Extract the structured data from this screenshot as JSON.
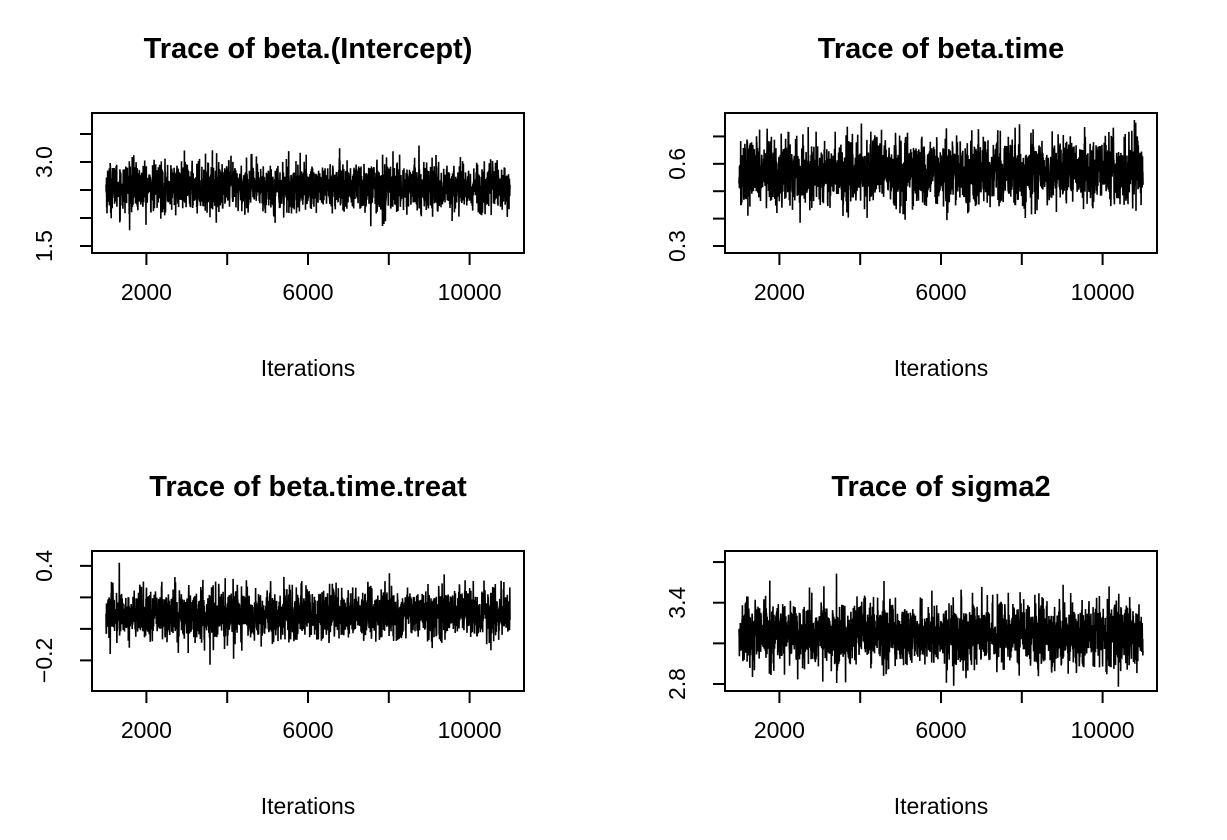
{
  "chart_data": [
    {
      "type": "line",
      "title": "Trace of beta.(Intercept)",
      "xlabel": "Iterations",
      "ylabel": "",
      "x_ticks": [
        2000,
        4000,
        6000,
        8000,
        10000
      ],
      "x_tick_labels": [
        "2000",
        "",
        "6000",
        "",
        "10000"
      ],
      "y_ticks": [
        1.5,
        2.0,
        2.5,
        3.0,
        3.5
      ],
      "y_tick_labels": [
        "1.5",
        "",
        "",
        "3.0",
        ""
      ],
      "xlim": [
        1000,
        11000
      ],
      "ylim": [
        1.5,
        3.75
      ],
      "series": [
        {
          "x_start": 1001,
          "x_end": 11000,
          "mean": 2.55,
          "spread": 0.22,
          "y_min": 1.5,
          "y_max": 3.55
        }
      ]
    },
    {
      "type": "line",
      "title": "Trace of beta.time",
      "xlabel": "Iterations",
      "ylabel": "",
      "x_ticks": [
        2000,
        4000,
        6000,
        8000,
        10000
      ],
      "x_tick_labels": [
        "2000",
        "",
        "6000",
        "",
        "10000"
      ],
      "y_ticks": [
        0.3,
        0.4,
        0.5,
        0.6,
        0.7
      ],
      "y_tick_labels": [
        "0.3",
        "",
        "",
        "0.6",
        ""
      ],
      "xlim": [
        1000,
        11000
      ],
      "ylim": [
        0.3,
        0.76
      ],
      "series": [
        {
          "x_start": 1001,
          "x_end": 11000,
          "mean": 0.57,
          "spread": 0.06,
          "y_min": 0.3,
          "y_max": 0.76
        }
      ]
    },
    {
      "type": "line",
      "title": "Trace of beta.time.treat",
      "xlabel": "Iterations",
      "ylabel": "",
      "x_ticks": [
        2000,
        4000,
        6000,
        8000,
        10000
      ],
      "x_tick_labels": [
        "2000",
        "",
        "6000",
        "",
        "10000"
      ],
      "y_ticks": [
        -0.2,
        0.0,
        0.2,
        0.4
      ],
      "y_tick_labels": [
        "−0.2",
        "",
        "",
        "0.4"
      ],
      "xlim": [
        1000,
        11000
      ],
      "ylim": [
        -0.35,
        0.45
      ],
      "series": [
        {
          "x_start": 1001,
          "x_end": 11000,
          "mean": 0.09,
          "spread": 0.08,
          "y_min": -0.33,
          "y_max": 0.42
        }
      ]
    },
    {
      "type": "line",
      "title": "Trace of sigma2",
      "xlabel": "Iterations",
      "ylabel": "",
      "x_ticks": [
        2000,
        4000,
        6000,
        8000,
        10000
      ],
      "x_tick_labels": [
        "2000",
        "",
        "6000",
        "",
        "10000"
      ],
      "y_ticks": [
        2.8,
        3.1,
        3.4,
        3.7
      ],
      "y_tick_labels": [
        "2.8",
        "",
        "3.4",
        ""
      ],
      "xlim": [
        1000,
        11000
      ],
      "ylim": [
        2.8,
        3.73
      ],
      "series": [
        {
          "x_start": 1001,
          "x_end": 11000,
          "mean": 3.16,
          "spread": 0.12,
          "y_min": 2.78,
          "y_max": 3.73
        }
      ]
    }
  ]
}
